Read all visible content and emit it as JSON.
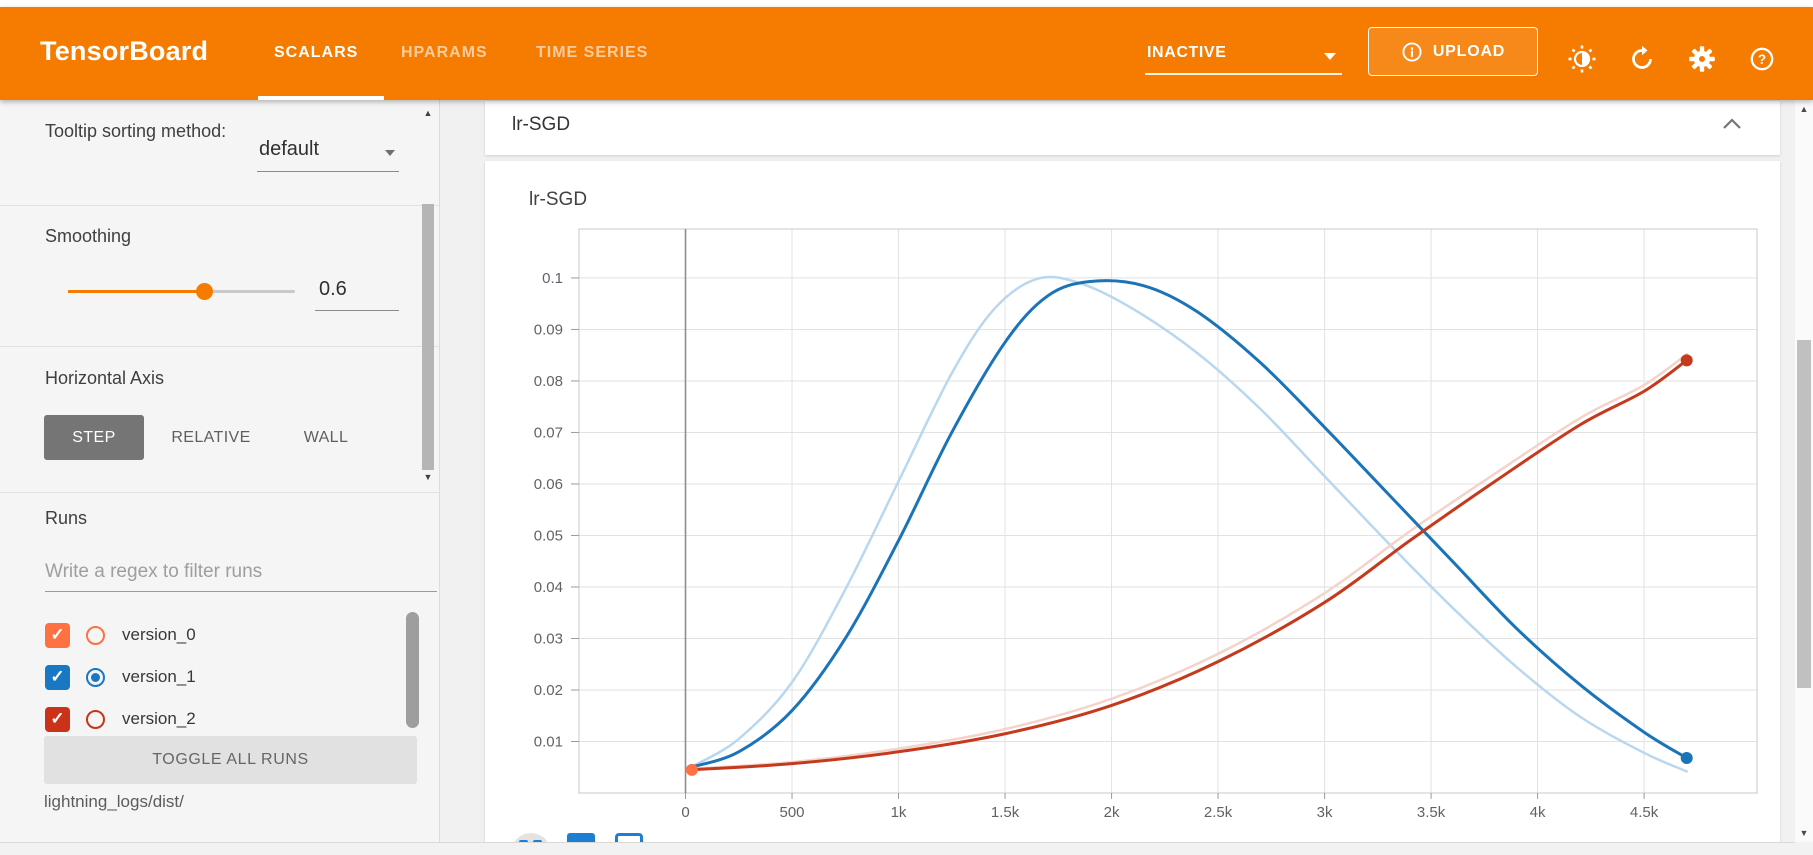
{
  "header": {
    "logo": "TensorBoard",
    "tabs": [
      {
        "label": "SCALARS",
        "active": true
      },
      {
        "label": "HPARAMS",
        "active": false
      },
      {
        "label": "TIME SERIES",
        "active": false
      }
    ],
    "status_dropdown_value": "INACTIVE",
    "upload_label": "UPLOAD",
    "accent_color": "#f57c00"
  },
  "icons": {
    "scroll_up": "▲",
    "scroll_down": "▼",
    "check": "✓",
    "help_glyph": "?"
  },
  "sidebar": {
    "tooltip_sorting_label": "Tooltip sorting method:",
    "tooltip_sorting_value": "default",
    "smoothing_label": "Smoothing",
    "smoothing_value": "0.6",
    "horizontal_axis_label": "Horizontal Axis",
    "axis_buttons": [
      {
        "label": "STEP",
        "active": true
      },
      {
        "label": "RELATIVE",
        "active": false
      },
      {
        "label": "WALL",
        "active": false
      }
    ],
    "runs_label": "Runs",
    "filter_placeholder": "Write a regex to filter runs",
    "runs": [
      {
        "name": "version_0",
        "color": "#ff7043",
        "checkbox_checked": true,
        "radio_selected": false
      },
      {
        "name": "version_1",
        "color": "#1a78c2",
        "checkbox_checked": true,
        "radio_selected": true
      },
      {
        "name": "version_2",
        "color": "#cb3318",
        "checkbox_checked": true,
        "radio_selected": false
      }
    ],
    "toggle_all_label": "TOGGLE ALL RUNS",
    "logdir": "lightning_logs/dist/"
  },
  "main": {
    "section_title": "lr-SGD"
  },
  "chart_data": {
    "type": "line",
    "title": "lr-SGD",
    "xlabel": "",
    "ylabel": "",
    "grid": true,
    "x_axis": {
      "ticks": [
        0,
        500,
        1000,
        1500,
        2000,
        2500,
        3000,
        3500,
        4000,
        4500
      ],
      "tick_labels": [
        "0",
        "500",
        "1k",
        "1.5k",
        "2k",
        "2.5k",
        "3k",
        "3.5k",
        "4k",
        "4.5k"
      ],
      "range": [
        -500,
        5030
      ]
    },
    "y_axis": {
      "ticks": [
        0.01,
        0.02,
        0.03,
        0.04,
        0.05,
        0.06,
        0.07,
        0.08,
        0.09,
        0.1
      ],
      "tick_labels": [
        "0.01",
        "0.02",
        "0.03",
        "0.04",
        "0.05",
        "0.06",
        "0.07",
        "0.08",
        "0.09",
        "0.1"
      ],
      "range": [
        0,
        0.1095
      ]
    },
    "zero_line_step": 0,
    "series": [
      {
        "name": "version_1 (raw)",
        "color": "#b9d7ee",
        "width": 2.5,
        "points": [
          [
            25,
            0.005
          ],
          [
            250,
            0.0105
          ],
          [
            500,
            0.0215
          ],
          [
            750,
            0.0395
          ],
          [
            1000,
            0.0605
          ],
          [
            1250,
            0.0815
          ],
          [
            1450,
            0.094
          ],
          [
            1650,
            0.0998
          ],
          [
            1850,
            0.099
          ],
          [
            2100,
            0.094
          ],
          [
            2400,
            0.0855
          ],
          [
            2700,
            0.0745
          ],
          [
            3000,
            0.0615
          ],
          [
            3300,
            0.0485
          ],
          [
            3600,
            0.036
          ],
          [
            3900,
            0.0245
          ],
          [
            4200,
            0.0148
          ],
          [
            4500,
            0.0078
          ],
          [
            4700,
            0.0042
          ]
        ]
      },
      {
        "name": "version_2 (raw)",
        "color": "#f3d3ca",
        "width": 2.5,
        "points": [
          [
            25,
            0.0047
          ],
          [
            500,
            0.006
          ],
          [
            1000,
            0.0086
          ],
          [
            1500,
            0.0124
          ],
          [
            2000,
            0.0183
          ],
          [
            2500,
            0.027
          ],
          [
            3000,
            0.0388
          ],
          [
            3400,
            0.0508
          ],
          [
            3800,
            0.062
          ],
          [
            4200,
            0.0728
          ],
          [
            4500,
            0.0792
          ],
          [
            4700,
            0.0852
          ]
        ]
      },
      {
        "name": "version_1 (smoothed)",
        "color": "#1a74b7",
        "width": 3,
        "end_dot": true,
        "points": [
          [
            25,
            0.005
          ],
          [
            250,
            0.008
          ],
          [
            500,
            0.016
          ],
          [
            750,
            0.03
          ],
          [
            1000,
            0.049
          ],
          [
            1250,
            0.07
          ],
          [
            1500,
            0.0875
          ],
          [
            1700,
            0.0965
          ],
          [
            1900,
            0.0993
          ],
          [
            2150,
            0.0985
          ],
          [
            2400,
            0.0935
          ],
          [
            2700,
            0.0835
          ],
          [
            3000,
            0.071
          ],
          [
            3300,
            0.058
          ],
          [
            3600,
            0.045
          ],
          [
            3900,
            0.032
          ],
          [
            4200,
            0.021
          ],
          [
            4500,
            0.0118
          ],
          [
            4700,
            0.0068
          ]
        ]
      },
      {
        "name": "version_2 (smoothed)",
        "color": "#c5391c",
        "width": 3,
        "end_dot": true,
        "points": [
          [
            25,
            0.0045
          ],
          [
            500,
            0.0057
          ],
          [
            1000,
            0.008
          ],
          [
            1500,
            0.0115
          ],
          [
            2000,
            0.017
          ],
          [
            2500,
            0.0255
          ],
          [
            3000,
            0.037
          ],
          [
            3400,
            0.049
          ],
          [
            3800,
            0.0605
          ],
          [
            4200,
            0.0715
          ],
          [
            4500,
            0.078
          ],
          [
            4700,
            0.084
          ]
        ]
      },
      {
        "name": "version_0",
        "color": "#ff7043",
        "width": 3,
        "dot_only": true,
        "points": [
          [
            30,
            0.0045
          ]
        ]
      }
    ]
  }
}
